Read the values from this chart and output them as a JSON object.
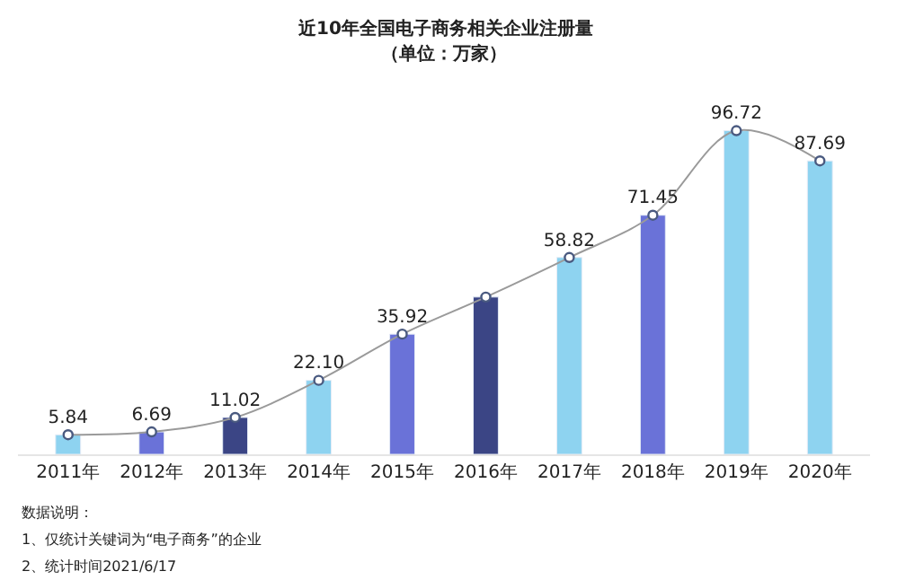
{
  "chart_data": {
    "type": "bar",
    "title": "近10年全国电子商务相关企业注册量",
    "subtitle": "（单位：万家）",
    "categories": [
      "2011年",
      "2012年",
      "2013年",
      "2014年",
      "2015年",
      "2016年",
      "2017年",
      "2018年",
      "2019年",
      "2020年"
    ],
    "series": [
      {
        "colors": [
          "#8ed3f0",
          "#6a72d8",
          "#3b4585",
          "#8ed3f0",
          "#6a72d8",
          "#3b4585",
          "#8ed3f0",
          "#6a72d8",
          "#8ed3f0",
          "#8ed3f0"
        ],
        "values": [
          5.84,
          6.69,
          11.02,
          22.1,
          35.92,
          47,
          58.82,
          71.45,
          96.72,
          87.69
        ]
      },
      {
        "type": "line",
        "color": "#9a9a9a",
        "marker": "circle",
        "values": [
          5.84,
          6.69,
          11.02,
          22.1,
          35.92,
          47,
          58.82,
          71.45,
          96.72,
          87.69
        ],
        "value_labels": [
          "5.84",
          "6.69",
          "11.02",
          "22.10",
          "35.92",
          null,
          "58.82",
          "71.45",
          "96.72",
          "87.69"
        ]
      }
    ],
    "tick_labels": "x",
    "legend": false,
    "annotations": [
      "数据说明：",
      "1、仅统计关键词为“电子商务”的企业",
      "2、统计时间2021/6/17"
    ]
  }
}
